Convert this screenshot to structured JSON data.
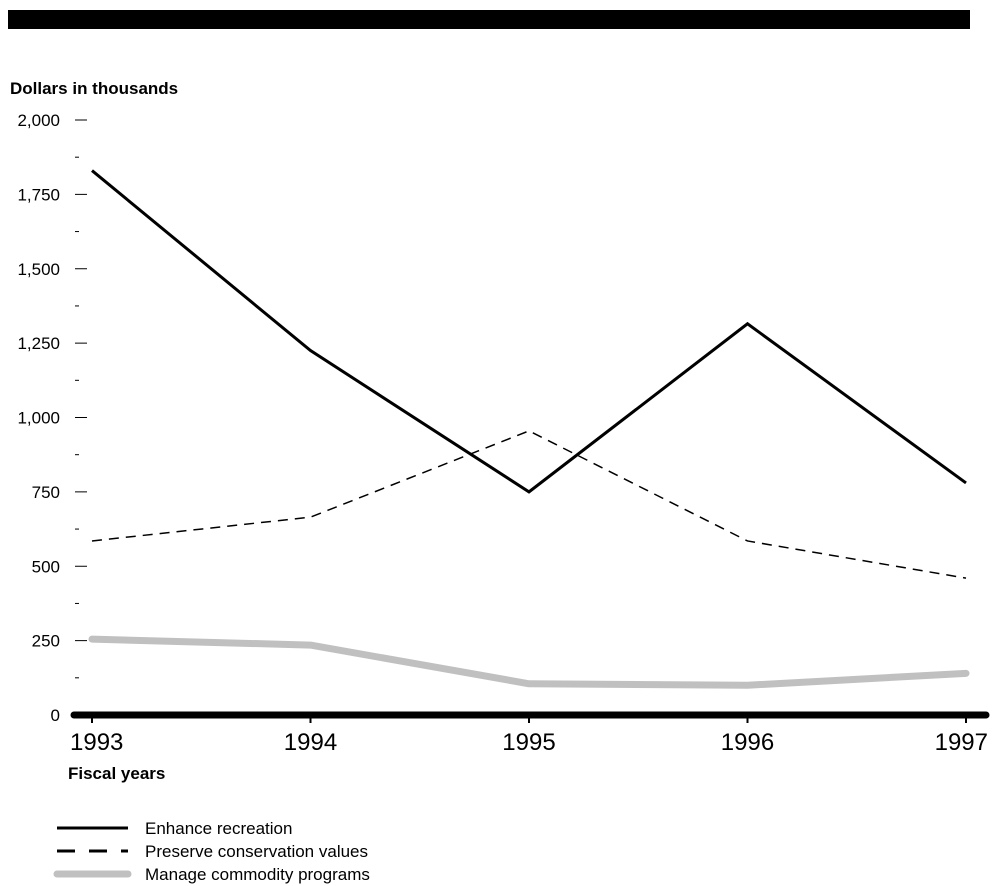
{
  "chart_data": {
    "type": "line",
    "title": "",
    "ylabel": "Dollars in thousands",
    "xlabel": "Fiscal years",
    "categories": [
      "1993",
      "1994",
      "1995",
      "1996",
      "1997"
    ],
    "ylim": [
      0,
      2000
    ],
    "y_ticks": [
      0,
      250,
      500,
      750,
      1000,
      1250,
      1500,
      1750,
      2000
    ],
    "y_tick_labels": [
      "0",
      "250",
      "500",
      "750",
      "1,000",
      "1,250",
      "1,500",
      "1,750",
      "2,000"
    ],
    "grid": false,
    "legend_position": "bottom-left",
    "series": [
      {
        "name": "Enhance recreation",
        "values": [
          1830,
          1225,
          750,
          1315,
          780
        ],
        "color": "#000000",
        "style": "solid"
      },
      {
        "name": "Preserve conservation values",
        "values": [
          585,
          665,
          955,
          585,
          460
        ],
        "color": "#000000",
        "style": "dashed"
      },
      {
        "name": "Manage commodity programs",
        "values": [
          255,
          235,
          105,
          100,
          140
        ],
        "color": "#c0c0c0",
        "style": "thick"
      }
    ]
  }
}
